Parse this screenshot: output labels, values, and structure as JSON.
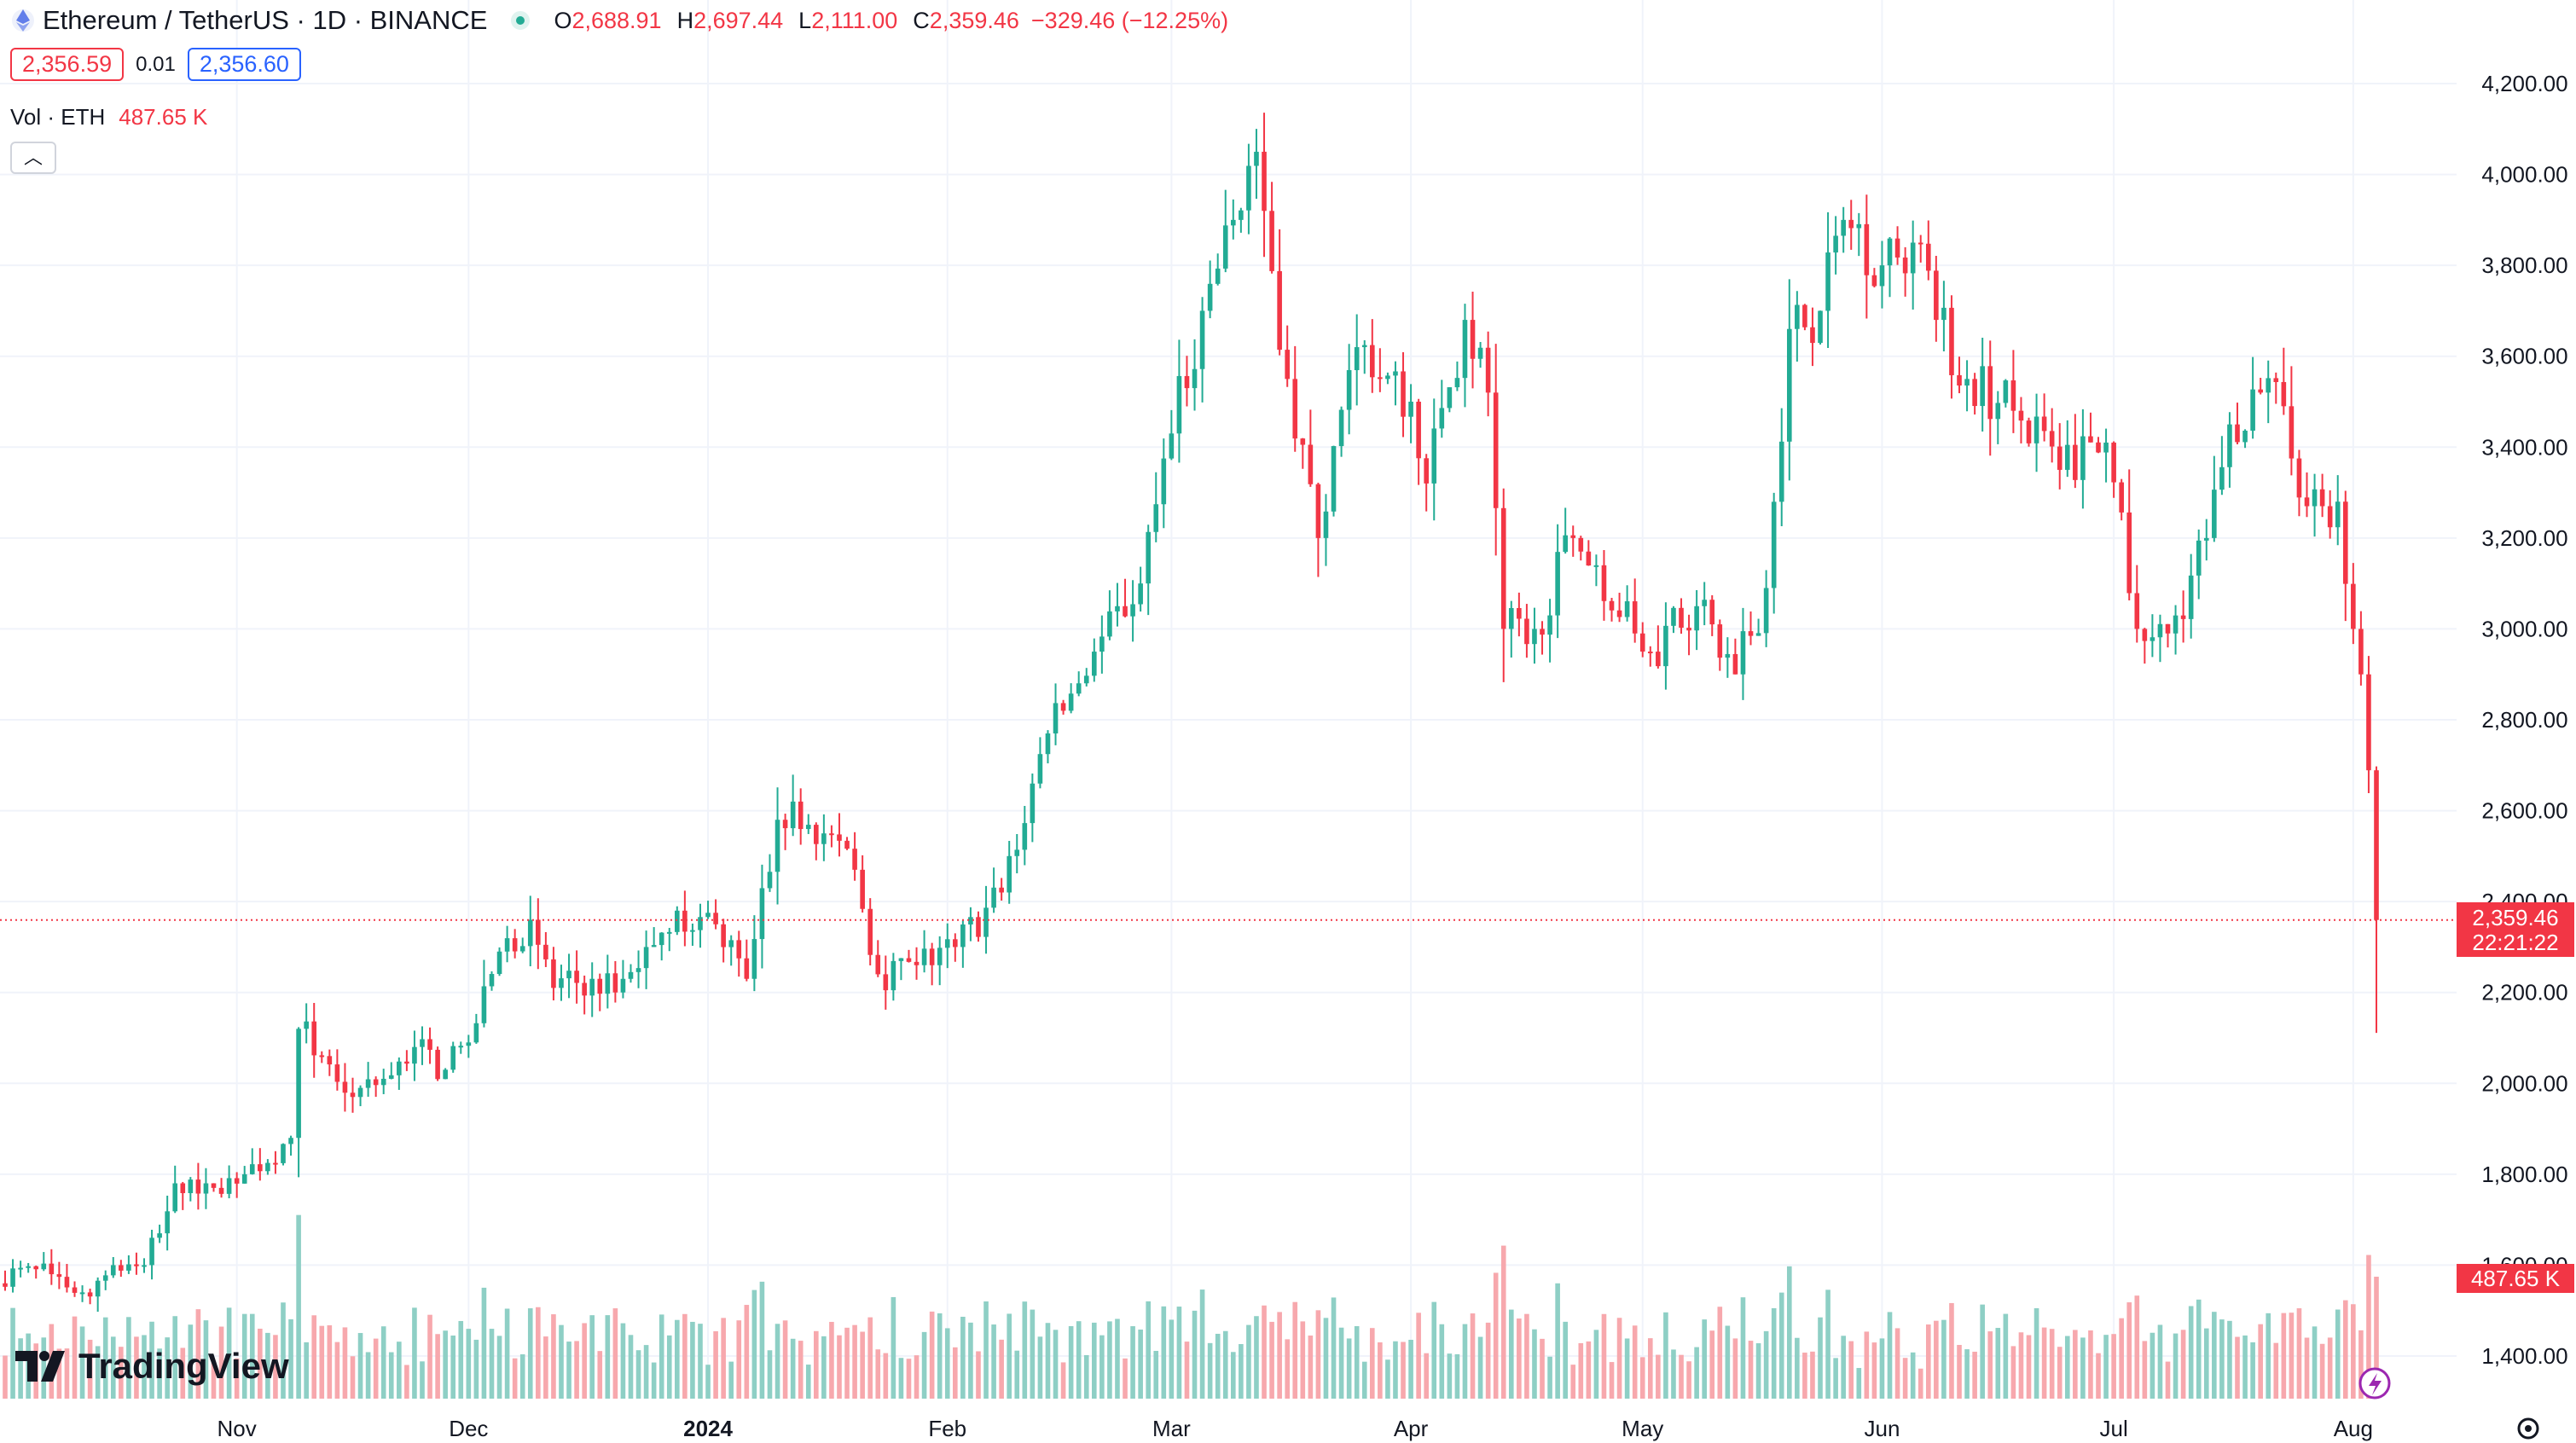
{
  "header": {
    "symbol_title": "Ethereum / TetherUS · 1D · BINANCE",
    "ohlc": {
      "O": "2,688.91",
      "H": "2,697.44",
      "L": "2,111.00",
      "C": "2,359.46",
      "change": "−329.46 (−12.25%)"
    },
    "bid": "2,356.59",
    "spread": "0.01",
    "ask": "2,356.60",
    "volume_label": "Vol · ETH",
    "volume_value": "487.65 K"
  },
  "price_label": {
    "price": "2,359.46",
    "countdown": "22:21:22"
  },
  "volume_badge": "487.65 K",
  "logo": {
    "text": "TradingView"
  },
  "colors": {
    "up": "#22ab94",
    "down": "#f23645",
    "up_volume": "#8ecfc5",
    "down_volume": "#f7a8ad",
    "grid": "#f0f3fa"
  },
  "chart_data": {
    "type": "candlestick",
    "interval": "1D",
    "y_axis_ticks": [
      "1,400.00",
      "1,600.00",
      "1,800.00",
      "2,000.00",
      "2,200.00",
      "2,400.00",
      "2,600.00",
      "2,800.00",
      "3,000.00",
      "3,200.00",
      "3,400.00",
      "3,600.00",
      "3,800.00",
      "4,000.00",
      "4,200.00"
    ],
    "ylim": [
      1300,
      4400
    ],
    "x_axis_ticks": [
      {
        "label": "Nov",
        "date": "2023-11-01"
      },
      {
        "label": "Dec",
        "date": "2023-12-01"
      },
      {
        "label": "2024",
        "date": "2024-01-01"
      },
      {
        "label": "Feb",
        "date": "2024-02-01"
      },
      {
        "label": "Mar",
        "date": "2024-03-01"
      },
      {
        "label": "Apr",
        "date": "2024-04-01"
      },
      {
        "label": "May",
        "date": "2024-05-01"
      },
      {
        "label": "Jun",
        "date": "2024-06-01"
      },
      {
        "label": "Jul",
        "date": "2024-07-01"
      },
      {
        "label": "Aug",
        "date": "2024-08-01"
      }
    ],
    "last_price": 2359.46,
    "anchor_points": [
      {
        "date": "2023-10-08",
        "close": 1580
      },
      {
        "date": "2023-10-12",
        "close": 1540
      },
      {
        "date": "2023-10-16",
        "close": 1600
      },
      {
        "date": "2023-10-20",
        "close": 1600
      },
      {
        "date": "2023-10-22",
        "close": 1670
      },
      {
        "date": "2023-10-24",
        "close": 1780
      },
      {
        "date": "2023-10-28",
        "close": 1780
      },
      {
        "date": "2023-11-02",
        "close": 1800
      },
      {
        "date": "2023-11-08",
        "close": 1880
      },
      {
        "date": "2023-11-09",
        "close": 2120
      },
      {
        "date": "2023-11-12",
        "close": 2060
      },
      {
        "date": "2023-11-16",
        "close": 1970
      },
      {
        "date": "2023-11-20",
        "close": 2010
      },
      {
        "date": "2023-11-24",
        "close": 2080
      },
      {
        "date": "2023-11-28",
        "close": 2030
      },
      {
        "date": "2023-12-01",
        "close": 2090
      },
      {
        "date": "2023-12-05",
        "close": 2290
      },
      {
        "date": "2023-12-09",
        "close": 2360
      },
      {
        "date": "2023-12-12",
        "close": 2210
      },
      {
        "date": "2023-12-17",
        "close": 2230
      },
      {
        "date": "2023-12-20",
        "close": 2200
      },
      {
        "date": "2023-12-24",
        "close": 2300
      },
      {
        "date": "2023-12-28",
        "close": 2380
      },
      {
        "date": "2024-01-02",
        "close": 2350
      },
      {
        "date": "2024-01-06",
        "close": 2230
      },
      {
        "date": "2024-01-10",
        "close": 2580
      },
      {
        "date": "2024-01-12",
        "close": 2620
      },
      {
        "date": "2024-01-16",
        "close": 2550
      },
      {
        "date": "2024-01-20",
        "close": 2470
      },
      {
        "date": "2024-01-23",
        "close": 2240
      },
      {
        "date": "2024-01-28",
        "close": 2260
      },
      {
        "date": "2024-02-02",
        "close": 2300
      },
      {
        "date": "2024-02-08",
        "close": 2420
      },
      {
        "date": "2024-02-14",
        "close": 2770
      },
      {
        "date": "2024-02-20",
        "close": 2950
      },
      {
        "date": "2024-02-26",
        "close": 3100
      },
      {
        "date": "2024-03-01",
        "close": 3430
      },
      {
        "date": "2024-03-05",
        "close": 3700
      },
      {
        "date": "2024-03-09",
        "close": 3900
      },
      {
        "date": "2024-03-12",
        "close": 4050
      },
      {
        "date": "2024-03-16",
        "close": 3550
      },
      {
        "date": "2024-03-20",
        "close": 3200
      },
      {
        "date": "2024-03-25",
        "close": 3620
      },
      {
        "date": "2024-03-28",
        "close": 3550
      },
      {
        "date": "2024-04-01",
        "close": 3500
      },
      {
        "date": "2024-04-03",
        "close": 3320
      },
      {
        "date": "2024-04-08",
        "close": 3680
      },
      {
        "date": "2024-04-11",
        "close": 3520
      },
      {
        "date": "2024-04-13",
        "close": 3000
      },
      {
        "date": "2024-04-17",
        "close": 3000
      },
      {
        "date": "2024-04-22",
        "close": 3200
      },
      {
        "date": "2024-04-25",
        "close": 3140
      },
      {
        "date": "2024-04-30",
        "close": 2990
      },
      {
        "date": "2024-05-02",
        "close": 2950
      },
      {
        "date": "2024-05-08",
        "close": 3050
      },
      {
        "date": "2024-05-13",
        "close": 2900
      },
      {
        "date": "2024-05-17",
        "close": 3090
      },
      {
        "date": "2024-05-20",
        "close": 3660
      },
      {
        "date": "2024-05-24",
        "close": 3700
      },
      {
        "date": "2024-05-27",
        "close": 3900
      },
      {
        "date": "2024-06-01",
        "close": 3800
      },
      {
        "date": "2024-06-05",
        "close": 3850
      },
      {
        "date": "2024-06-08",
        "close": 3680
      },
      {
        "date": "2024-06-12",
        "close": 3550
      },
      {
        "date": "2024-06-18",
        "close": 3480
      },
      {
        "date": "2024-06-24",
        "close": 3350
      },
      {
        "date": "2024-06-30",
        "close": 3410
      },
      {
        "date": "2024-07-04",
        "close": 3000
      },
      {
        "date": "2024-07-08",
        "close": 2990
      },
      {
        "date": "2024-07-13",
        "close": 3200
      },
      {
        "date": "2024-07-16",
        "close": 3450
      },
      {
        "date": "2024-07-20",
        "close": 3520
      },
      {
        "date": "2024-07-23",
        "close": 3490
      },
      {
        "date": "2024-07-26",
        "close": 3270
      },
      {
        "date": "2024-07-30",
        "close": 3280
      },
      {
        "date": "2024-08-01",
        "close": 3000
      },
      {
        "date": "2024-08-02",
        "close": 2900
      },
      {
        "date": "2024-08-03",
        "close": 2688.91
      },
      {
        "date": "2024-08-04",
        "close": 2359.46
      }
    ],
    "last_candle": {
      "date": "2024-08-04",
      "open": 2688.91,
      "high": 2697.44,
      "low": 2111.0,
      "close": 2359.46,
      "volume_k": 487.65
    }
  }
}
